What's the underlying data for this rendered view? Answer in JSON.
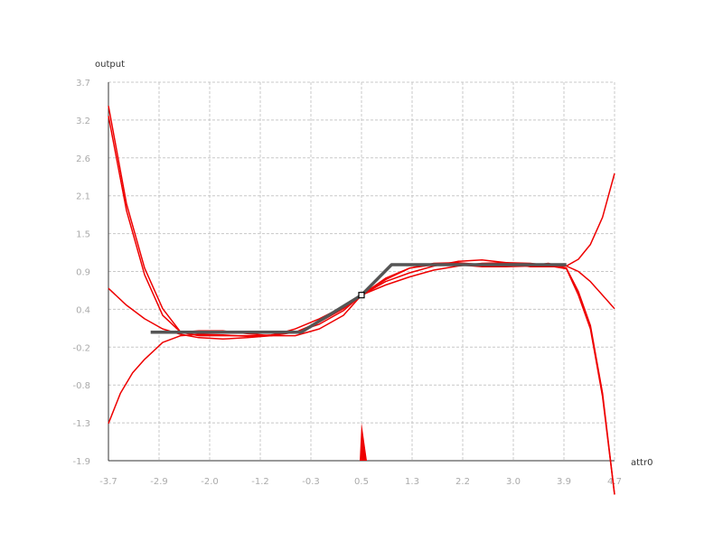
{
  "chart_data": {
    "type": "line",
    "title": "",
    "xlabel": "attr0",
    "ylabel": "output",
    "xlim": [
      -3.7,
      4.7
    ],
    "ylim": [
      -1.9,
      3.7
    ],
    "x_ticks": [
      "-3.7",
      "-2.9",
      "-2.0",
      "-1.2",
      "-0.3",
      "0.5",
      "1.3",
      "2.2",
      "3.0",
      "3.9",
      "4.7"
    ],
    "y_ticks": [
      "3.7",
      "3.2",
      "2.6",
      "2.1",
      "1.5",
      "0.9",
      "0.4",
      "-0.2",
      "-0.8",
      "-1.3",
      "-1.9"
    ],
    "grid": true,
    "colors": {
      "target": "#555555",
      "fits": "#ee0000",
      "grid": "#c8c8c8",
      "axis": "#333333"
    },
    "target": {
      "x": [
        -3.0,
        -0.5,
        0.5,
        1.0,
        3.9
      ],
      "y": [
        0.0,
        0.0,
        0.55,
        1.0,
        1.0
      ]
    },
    "marker": {
      "x": 0.5,
      "y": 0.55
    },
    "series": [
      {
        "x": [
          -3.7,
          -3.4,
          -3.1,
          -2.8,
          -2.5,
          -2.2,
          -1.8,
          -1.4,
          -1.0,
          -0.6,
          -0.2,
          0.2,
          0.5,
          0.9,
          1.3,
          1.7,
          2.1,
          2.5,
          2.9,
          3.3,
          3.6,
          3.9,
          4.1,
          4.3,
          4.5,
          4.7
        ],
        "y": [
          3.35,
          1.9,
          0.95,
          0.35,
          0.0,
          -0.05,
          -0.05,
          -0.05,
          -0.05,
          -0.05,
          0.05,
          0.25,
          0.55,
          0.8,
          0.95,
          1.0,
          1.0,
          0.97,
          0.97,
          0.98,
          1.02,
          0.95,
          0.6,
          0.1,
          -0.9,
          -2.4
        ]
      },
      {
        "x": [
          -3.7,
          -3.5,
          -3.3,
          -3.1,
          -2.8,
          -2.5,
          -2.2,
          -1.8,
          -1.4,
          -1.0,
          -0.6,
          -0.2,
          0.2,
          0.5,
          0.9,
          1.3,
          1.7,
          2.1,
          2.5,
          2.9,
          3.3,
          3.7,
          3.9,
          4.1,
          4.3,
          4.5,
          4.7
        ],
        "y": [
          -1.35,
          -0.9,
          -0.6,
          -0.4,
          -0.15,
          -0.05,
          -0.03,
          -0.04,
          -0.06,
          -0.04,
          0.0,
          0.15,
          0.35,
          0.55,
          0.78,
          0.95,
          1.02,
          1.03,
          1.0,
          0.98,
          0.99,
          1.0,
          0.98,
          0.9,
          0.75,
          0.55,
          0.35
        ]
      },
      {
        "x": [
          -3.7,
          -3.4,
          -3.1,
          -2.8,
          -2.5,
          -2.2,
          -1.8,
          -1.4,
          -1.0,
          -0.6,
          -0.2,
          0.2,
          0.5,
          0.9,
          1.3,
          1.7,
          2.1,
          2.5,
          2.9,
          3.3,
          3.7,
          3.9,
          4.1,
          4.3,
          4.5,
          4.7
        ],
        "y": [
          0.65,
          0.4,
          0.2,
          0.05,
          -0.03,
          -0.08,
          -0.1,
          -0.08,
          -0.05,
          0.05,
          0.2,
          0.38,
          0.55,
          0.7,
          0.82,
          0.92,
          0.98,
          1.02,
          1.03,
          1.02,
          0.98,
          0.98,
          1.08,
          1.3,
          1.7,
          2.35
        ]
      },
      {
        "x": [
          -3.7,
          -3.4,
          -3.1,
          -2.8,
          -2.5,
          -2.2,
          -1.8,
          -1.4,
          -1.0,
          -0.6,
          -0.2,
          0.2,
          0.5,
          0.9,
          1.3,
          1.7,
          2.1,
          2.5,
          2.9,
          3.3,
          3.7,
          3.9,
          4.1,
          4.3,
          4.5,
          4.7
        ],
        "y": [
          3.2,
          1.8,
          0.85,
          0.25,
          0.0,
          0.02,
          0.02,
          -0.02,
          -0.05,
          0.0,
          0.12,
          0.32,
          0.55,
          0.75,
          0.88,
          0.98,
          1.05,
          1.07,
          1.03,
          0.97,
          0.97,
          0.94,
          0.55,
          0.05,
          -0.95,
          -2.4
        ]
      }
    ]
  }
}
